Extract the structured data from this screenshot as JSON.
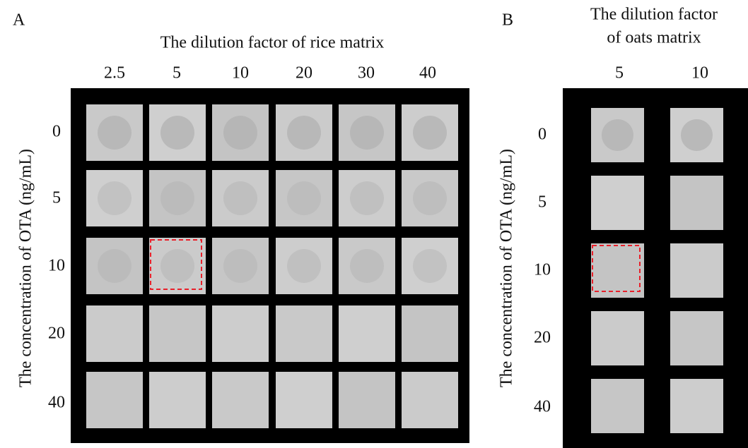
{
  "panels": [
    {
      "label": "A",
      "title": [
        "The dilution factor of rice matrix"
      ],
      "columns": [
        "2.5",
        "5",
        "10",
        "20",
        "30",
        "40"
      ],
      "rows": [
        "0",
        "5",
        "10",
        "20",
        "40"
      ],
      "y_label": "The concentration of OTA (ng/mL)"
    },
    {
      "label": "B",
      "title": [
        "The dilution factor",
        "of oats matrix"
      ],
      "columns": [
        "5",
        "10"
      ],
      "rows": [
        "0",
        "5",
        "10",
        "20",
        "40"
      ],
      "y_label": "The concentration of OTA (ng/mL)"
    }
  ]
}
